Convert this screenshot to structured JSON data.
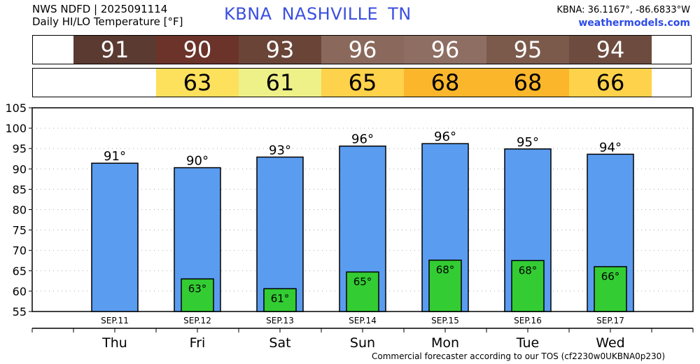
{
  "header": {
    "line1": "NWS NDFD | 2025091114",
    "line2": "Daily HI/LO Temperature [°F]",
    "station": "KBNA",
    "city": "NASHVILLE",
    "state": "TN",
    "coords": "KBNA: 36.1167°, -86.6833°W",
    "site": "weathermodels.com"
  },
  "strips": {
    "hi": [
      {
        "value": "91",
        "color": "#5b3a31",
        "text": "#ffffff"
      },
      {
        "value": "90",
        "color": "#6b3329",
        "text": "#ffffff"
      },
      {
        "value": "93",
        "color": "#6a4537",
        "text": "#ffffff"
      },
      {
        "value": "96",
        "color": "#8a695c",
        "text": "#ffffff"
      },
      {
        "value": "96",
        "color": "#8e6e62",
        "text": "#ffffff"
      },
      {
        "value": "95",
        "color": "#7b5a4c",
        "text": "#ffffff"
      },
      {
        "value": "94",
        "color": "#6d4c3f",
        "text": "#ffffff"
      }
    ],
    "lo": [
      {
        "value": "",
        "color": "#ffffff",
        "text": "#000000"
      },
      {
        "value": "63",
        "color": "#fde05c",
        "text": "#000000"
      },
      {
        "value": "61",
        "color": "#eef088",
        "text": "#000000"
      },
      {
        "value": "65",
        "color": "#fed24a",
        "text": "#000000"
      },
      {
        "value": "68",
        "color": "#fbb62c",
        "text": "#000000"
      },
      {
        "value": "68",
        "color": "#fbb62c",
        "text": "#000000"
      },
      {
        "value": "66",
        "color": "#fed24a",
        "text": "#000000"
      }
    ]
  },
  "chart_data": {
    "type": "bar",
    "ylim": [
      55,
      105
    ],
    "yticks": [
      "55",
      "60",
      "65",
      "70",
      "75",
      "80",
      "85",
      "90",
      "95",
      "100",
      "105"
    ],
    "grid": true,
    "categories": [
      "SEP.11",
      "SEP.12",
      "SEP.13",
      "SEP.14",
      "SEP.15",
      "SEP.16",
      "SEP.17"
    ],
    "days": [
      "Thu",
      "Fri",
      "Sat",
      "Sun",
      "Mon",
      "Tue",
      "Wed"
    ],
    "series": [
      {
        "values": [
          91.4,
          90.3,
          92.9,
          95.6,
          96.2,
          94.9,
          93.6
        ],
        "labels": [
          "91°",
          "90°",
          "93°",
          "96°",
          "96°",
          "95°",
          "94°"
        ],
        "color": "#5a9cf0"
      },
      {
        "values": [
          null,
          63.0,
          60.6,
          64.7,
          67.6,
          67.5,
          66.0
        ],
        "labels": [
          "",
          "63°",
          "61°",
          "65°",
          "68°",
          "68°",
          "66°"
        ],
        "color": "#33cc33"
      }
    ]
  },
  "footer": "Commercial forecaster according to our TOS (cf2230w0UKBNA0p230)"
}
